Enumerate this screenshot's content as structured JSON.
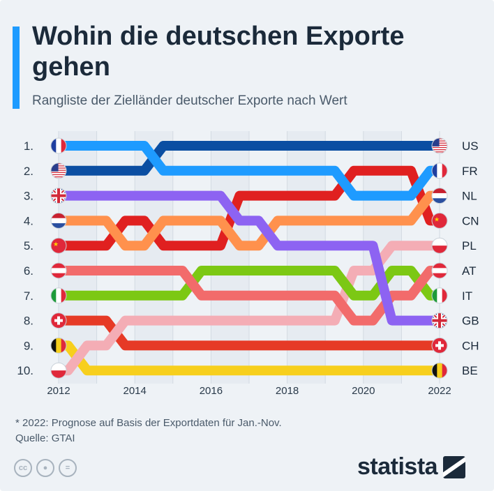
{
  "header": {
    "title": "Wohin die deutschen Exporte gehen",
    "subtitle": "Rangliste der Zielländer deutscher Exporte nach Wert"
  },
  "footer": {
    "note": "* 2022: Prognose auf Basis der Exportdaten für Jan.-Nov.",
    "source": "Quelle: GTAI",
    "brand": "statista",
    "license_icons": [
      "cc-icon",
      "person-icon",
      "equal-icon"
    ]
  },
  "colors": {
    "background": "#eef2f6",
    "accent": "#1e9bff",
    "text": "#1b2a3a"
  },
  "chart_data": {
    "type": "line",
    "chart_style": "bump-chart",
    "x_ticks": [
      2012,
      2014,
      2016,
      2018,
      2020,
      2022
    ],
    "x_years": [
      2012,
      2013,
      2014,
      2015,
      2016,
      2017,
      2018,
      2019,
      2020,
      2021,
      2022
    ],
    "y_ticks": [
      "1.",
      "2.",
      "3.",
      "4.",
      "5.",
      "6.",
      "7.",
      "8.",
      "9.",
      "10."
    ],
    "y_reversed": true,
    "series": [
      {
        "name": "FR",
        "flag": "fr",
        "color": "#1e9bff",
        "ranks": [
          1,
          1,
          1,
          2,
          2,
          2,
          2,
          2,
          3,
          3,
          2
        ]
      },
      {
        "name": "US",
        "flag": "us",
        "color": "#0b4ea2",
        "ranks": [
          2,
          2,
          2,
          1,
          1,
          1,
          1,
          1,
          1,
          1,
          1
        ]
      },
      {
        "name": "GB",
        "flag": "gb",
        "color": "#8d63f2",
        "ranks": [
          3,
          3,
          3,
          3,
          3,
          4,
          5,
          5,
          5,
          8,
          8
        ]
      },
      {
        "name": "NL",
        "flag": "nl",
        "color": "#ff914d",
        "ranks": [
          4,
          4,
          5,
          4,
          4,
          5,
          4,
          4,
          4,
          4,
          3
        ]
      },
      {
        "name": "CN",
        "flag": "cn",
        "color": "#e02020",
        "ranks": [
          5,
          5,
          4,
          5,
          5,
          3,
          3,
          3,
          2,
          2,
          4
        ]
      },
      {
        "name": "AT",
        "flag": "at",
        "color": "#f26b6b",
        "ranks": [
          6,
          6,
          6,
          6,
          7,
          7,
          7,
          7,
          8,
          7,
          6
        ]
      },
      {
        "name": "IT",
        "flag": "it",
        "color": "#7cc814",
        "ranks": [
          7,
          7,
          7,
          7,
          6,
          6,
          6,
          6,
          7,
          6,
          7
        ]
      },
      {
        "name": "PL",
        "flag": "pl",
        "color": "#f4adb5",
        "ranks": [
          10,
          9,
          8,
          8,
          8,
          8,
          8,
          8,
          6,
          5,
          5
        ]
      },
      {
        "name": "CH",
        "flag": "ch",
        "color": "#e63a26",
        "ranks": [
          8,
          8,
          9,
          9,
          9,
          9,
          9,
          9,
          9,
          9,
          9
        ]
      },
      {
        "name": "BE",
        "flag": "be",
        "color": "#f7cf1d",
        "ranks": [
          9,
          10,
          10,
          10,
          10,
          10,
          10,
          10,
          10,
          10,
          10
        ]
      }
    ],
    "title": "Wohin die deutschen Exporte gehen",
    "subtitle": "Rangliste der Zielländer deutscher Exporte nach Wert",
    "grid": true
  }
}
